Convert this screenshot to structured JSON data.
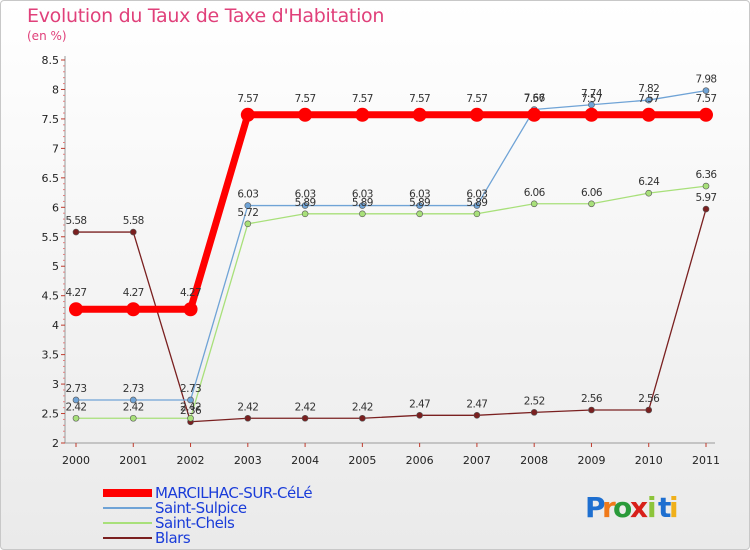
{
  "chart_data": {
    "type": "line",
    "title": "Evolution du Taux de Taxe d'Habitation",
    "ylabel": "(en %)",
    "xlabel": "",
    "ylim": [
      2,
      8.5
    ],
    "yticks": [
      "2",
      "2.5",
      "3",
      "3.5",
      "4",
      "4.5",
      "5",
      "5.5",
      "6",
      "6.5",
      "7",
      "7.5",
      "8",
      "8.5"
    ],
    "categories": [
      "2000",
      "2001",
      "2002",
      "2003",
      "2004",
      "2005",
      "2006",
      "2007",
      "2008",
      "2009",
      "2010",
      "2011"
    ],
    "series": [
      {
        "name": "MARCILHAC-SUR-CéLé",
        "color": "#ff0000",
        "values": [
          4.27,
          4.27,
          4.27,
          7.57,
          7.57,
          7.57,
          7.57,
          7.57,
          7.57,
          7.57,
          7.57,
          7.57
        ],
        "labels": [
          "4.27",
          "4.27",
          "4.27",
          "7.57",
          "7.57",
          "7.57",
          "7.57",
          "7.57",
          "7.57",
          "7.57",
          "7.57",
          "7.57"
        ]
      },
      {
        "name": "Saint-Sulpice",
        "color": "#6fa3d6",
        "values": [
          2.73,
          2.73,
          2.73,
          6.03,
          6.03,
          6.03,
          6.03,
          6.03,
          7.66,
          7.74,
          7.82,
          7.98
        ],
        "labels": [
          "2.73",
          "2.73",
          "2.73",
          "6.03",
          "6.03",
          "6.03",
          "6.03",
          "6.03",
          "7.66",
          "7.74",
          "7.82",
          "7.98"
        ]
      },
      {
        "name": "Saint-Chels",
        "color": "#a8e07a",
        "values": [
          2.42,
          2.42,
          2.42,
          5.72,
          5.89,
          5.89,
          5.89,
          5.89,
          6.06,
          6.06,
          6.24,
          6.36
        ],
        "labels": [
          "2.42",
          "2.42",
          "2.42",
          "5.72",
          "5.89",
          "5.89",
          "5.89",
          "5.89",
          "6.06",
          "6.06",
          "6.24",
          "6.36"
        ]
      },
      {
        "name": "Blars",
        "color": "#7a2020",
        "values": [
          5.58,
          5.58,
          2.36,
          2.42,
          2.42,
          2.42,
          2.47,
          2.47,
          2.52,
          2.56,
          2.56,
          5.97
        ],
        "labels": [
          "5.58",
          "5.58",
          "2.36",
          "2.42",
          "2.42",
          "2.42",
          "2.47",
          "2.47",
          "2.52",
          "2.56",
          "2.56",
          "5.97"
        ]
      }
    ],
    "legend": "bottom-left"
  },
  "logo": {
    "letters": [
      "P",
      "r",
      "o",
      "x",
      "i",
      "t",
      "i"
    ],
    "colors": [
      "#1e6fd0",
      "#f07a1a",
      "#2a9a3a",
      "#d8201a",
      "#8cc43a",
      "#1e6fd0",
      "#f0b01a"
    ]
  }
}
